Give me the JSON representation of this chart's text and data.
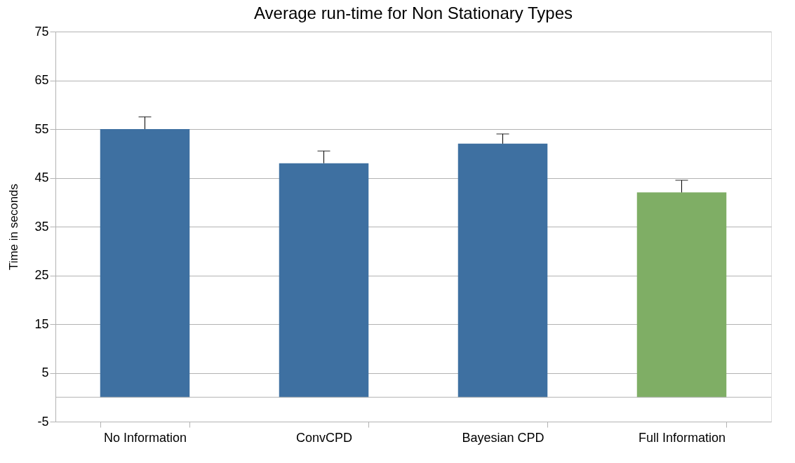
{
  "chart_data": {
    "type": "bar",
    "title": "Average run-time for Non Stationary Types",
    "ylabel": "Time in seconds",
    "categories": [
      "No Information",
      "ConvCPD",
      "Bayesian CPD",
      "Full Information"
    ],
    "values": [
      55,
      48,
      52,
      42
    ],
    "colors": [
      "#3e70a1",
      "#3e70a1",
      "#3e70a1",
      "#7fae65"
    ],
    "errors": [
      [
        55,
        57.5
      ],
      [
        48,
        50.5
      ],
      [
        52,
        54
      ],
      [
        42,
        44.5
      ]
    ],
    "ylim": [
      -5,
      75
    ],
    "yticks": [
      -5,
      5,
      15,
      25,
      35,
      45,
      55,
      65,
      75
    ],
    "grid": "y"
  }
}
